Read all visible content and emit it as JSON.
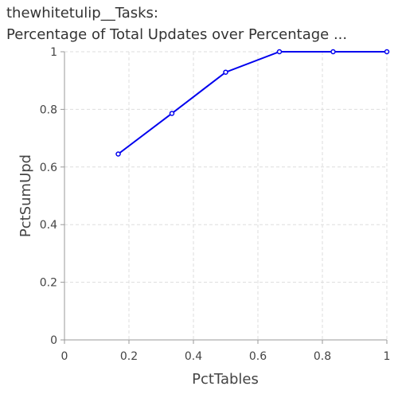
{
  "title_lines": [
    "thewhitetulip__Tasks:",
    "Percentage of Total Updates over Percentage ..."
  ],
  "chart_data": {
    "type": "line",
    "title": "thewhitetulip__Tasks: Percentage of Total Updates over Percentage ...",
    "xlabel": "PctTables",
    "ylabel": "PctSumUpd",
    "xlim": [
      0,
      1
    ],
    "ylim": [
      0,
      1
    ],
    "xticks": [
      0,
      0.2,
      0.4,
      0.6,
      0.8,
      1
    ],
    "xtick_labels": [
      "0",
      "0.2",
      "0.4",
      "0.6",
      "0.8",
      "1"
    ],
    "yticks": [
      0,
      0.2,
      0.4,
      0.6,
      0.8,
      1
    ],
    "ytick_labels": [
      "0",
      "0.2",
      "0.4",
      "0.6",
      "0.8",
      "1"
    ],
    "grid": true,
    "series": [
      {
        "color": "#0000ee",
        "x": [
          0.1667,
          0.3333,
          0.5,
          0.6667,
          0.8333,
          1.0
        ],
        "y": [
          0.645,
          0.786,
          0.929,
          1.0,
          1.0,
          1.0
        ]
      }
    ]
  }
}
